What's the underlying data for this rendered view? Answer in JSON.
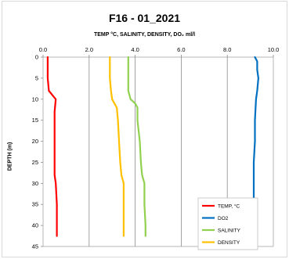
{
  "chart_data": {
    "type": "line",
    "title": "F16 - 01_2021",
    "subtitle": "TEMP °C, SALINITY, DENSITY, DO₂ ml/l",
    "ylabel": "DEPTH (m)",
    "xlabel": "",
    "xlim": [
      0,
      10
    ],
    "ylim": [
      0,
      45
    ],
    "y_reversed": true,
    "x_axis_position": "top",
    "x_ticks": [
      "0.0",
      "2.0",
      "4.0",
      "6.0",
      "8.0",
      "10.0"
    ],
    "y_ticks": [
      "0",
      "5",
      "10",
      "15",
      "20",
      "25",
      "30",
      "35",
      "40",
      "45"
    ],
    "grid": "vertical major",
    "legend_position": "bottom-right",
    "series": [
      {
        "name": "TEMP, °C",
        "color": "#ff0000",
        "points": [
          [
            0.2,
            0
          ],
          [
            0.2,
            1
          ],
          [
            0.2,
            5
          ],
          [
            0.25,
            8
          ],
          [
            0.4,
            9
          ],
          [
            0.55,
            10
          ],
          [
            0.5,
            13
          ],
          [
            0.5,
            20
          ],
          [
            0.5,
            25
          ],
          [
            0.5,
            28
          ],
          [
            0.55,
            30
          ],
          [
            0.6,
            35
          ],
          [
            0.6,
            42.5
          ]
        ]
      },
      {
        "name": "DO2",
        "color": "#0070c0",
        "points": [
          [
            9.2,
            0
          ],
          [
            9.3,
            1
          ],
          [
            9.3,
            3
          ],
          [
            9.35,
            5
          ],
          [
            9.3,
            8
          ],
          [
            9.25,
            10
          ],
          [
            9.2,
            15
          ],
          [
            9.2,
            20
          ],
          [
            9.15,
            25
          ],
          [
            9.15,
            30
          ],
          [
            9.15,
            35
          ],
          [
            9.1,
            40
          ],
          [
            9.1,
            42.5
          ]
        ]
      },
      {
        "name": "SALINITY",
        "color": "#92d050",
        "points": [
          [
            3.7,
            0
          ],
          [
            3.7,
            5
          ],
          [
            3.7,
            8
          ],
          [
            3.8,
            10
          ],
          [
            4.0,
            11
          ],
          [
            4.1,
            12
          ],
          [
            4.1,
            15
          ],
          [
            4.2,
            20
          ],
          [
            4.25,
            25
          ],
          [
            4.3,
            28
          ],
          [
            4.4,
            30
          ],
          [
            4.4,
            35
          ],
          [
            4.45,
            40
          ],
          [
            4.45,
            42.5
          ]
        ]
      },
      {
        "name": "DENSITY",
        "color": "#ffc000",
        "points": [
          [
            2.9,
            0
          ],
          [
            2.9,
            5
          ],
          [
            2.95,
            8
          ],
          [
            3.0,
            10
          ],
          [
            3.1,
            11
          ],
          [
            3.2,
            12
          ],
          [
            3.25,
            15
          ],
          [
            3.3,
            20
          ],
          [
            3.35,
            25
          ],
          [
            3.4,
            28
          ],
          [
            3.5,
            30
          ],
          [
            3.5,
            35
          ],
          [
            3.5,
            40
          ],
          [
            3.5,
            42.5
          ]
        ]
      }
    ]
  }
}
